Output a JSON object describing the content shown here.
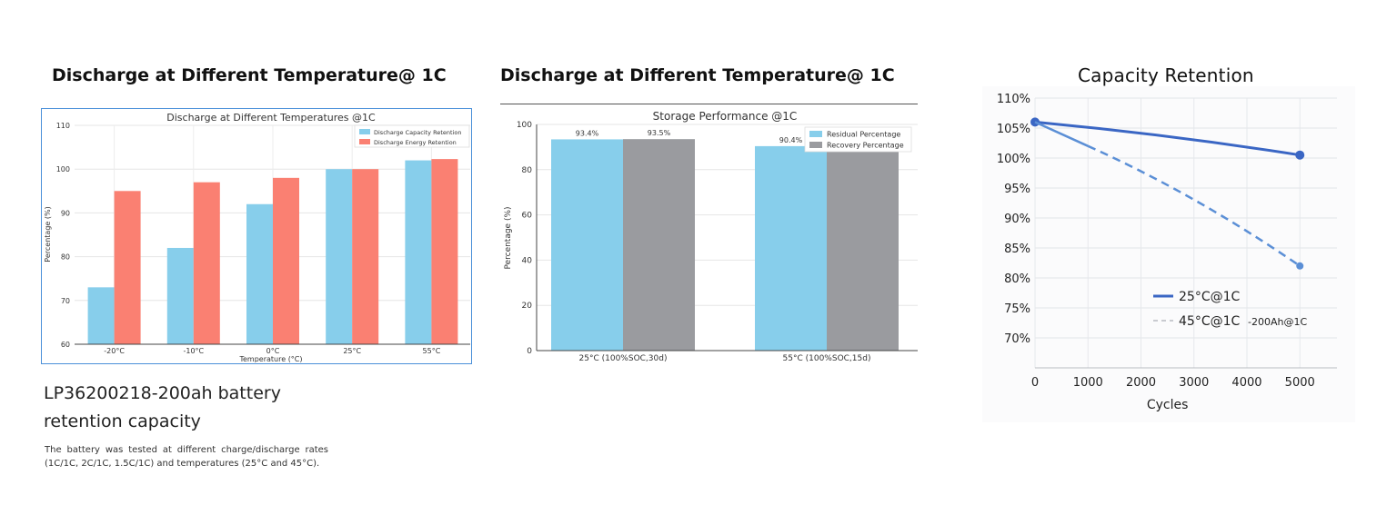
{
  "headings": {
    "chart1": "Discharge at Different Temperature@ 1C",
    "chart2": "Discharge at Different Temperature@ 1C"
  },
  "product": {
    "title": "LP36200218-200ah battery retention capacity",
    "description": "The battery was tested at different charge/discharge rates (1C/1C, 2C/1C, 1.5C/1C) and temperatures (25°C and 45°C)."
  },
  "chart_data": [
    {
      "type": "bar",
      "title": "Discharge at Different Temperatures @1C",
      "xlabel": "Temperature (°C)",
      "ylabel": "Percentage (%)",
      "categories": [
        "-20°C",
        "-10°C",
        "0°C",
        "25°C",
        "55°C"
      ],
      "ylim": [
        60,
        110
      ],
      "yticks": [
        60,
        70,
        80,
        90,
        100,
        110
      ],
      "grid": true,
      "legend_position": "top-right",
      "series": [
        {
          "name": "Discharge Capacity Retention",
          "color": "#87ceeb",
          "values": [
            73,
            82,
            92,
            100,
            102
          ]
        },
        {
          "name": "Discharge Energy Retention",
          "color": "#fa8072",
          "values": [
            95,
            97,
            98,
            100,
            102.3
          ]
        }
      ]
    },
    {
      "type": "bar",
      "title": "Storage Performance @1C",
      "xlabel": "",
      "ylabel": "Percentage (%)",
      "categories": [
        "25°C (100%SOC,30d)",
        "55°C (100%SOC,15d)"
      ],
      "ylim": [
        0,
        100
      ],
      "yticks": [
        0,
        20,
        40,
        60,
        80,
        100
      ],
      "grid": true,
      "legend_position": "top-right",
      "series": [
        {
          "name": "Residual Percentage",
          "color": "#87ceeb",
          "values": [
            93.4,
            90.4
          ],
          "labels": [
            "93.4%",
            "90.4%"
          ]
        },
        {
          "name": "Recovery Percentage",
          "color": "#9a9b9f",
          "values": [
            93.5,
            90.4
          ],
          "labels": [
            "93.5%",
            ""
          ]
        }
      ]
    },
    {
      "type": "line",
      "title": "Capacity Retention",
      "xlabel": "Cycles",
      "ylabel": "",
      "xlim": [
        0,
        5700
      ],
      "ylim": [
        65,
        110
      ],
      "xticks": [
        0,
        1000,
        2000,
        3000,
        4000,
        5000
      ],
      "yticks": [
        70,
        75,
        80,
        85,
        90,
        95,
        100,
        105,
        110
      ],
      "ytick_labels": [
        "70%",
        "75%",
        "80%",
        "85%",
        "90%",
        "95%",
        "100%",
        "105%",
        "110%"
      ],
      "grid": true,
      "legend_position": "bottom-center",
      "series": [
        {
          "name": "25°C@1C",
          "color": "#3a66c4",
          "style": "solid",
          "x": [
            0,
            2500,
            5000
          ],
          "y": [
            106,
            103.5,
            100.5
          ]
        },
        {
          "name": "45°C@1C",
          "legend_suffix": "-200Ah@1C",
          "color": "#5b8fd6",
          "style": "dashed",
          "x": [
            0,
            1000,
            3000,
            5000
          ],
          "y": [
            106,
            102,
            93.5,
            82
          ]
        }
      ]
    }
  ]
}
